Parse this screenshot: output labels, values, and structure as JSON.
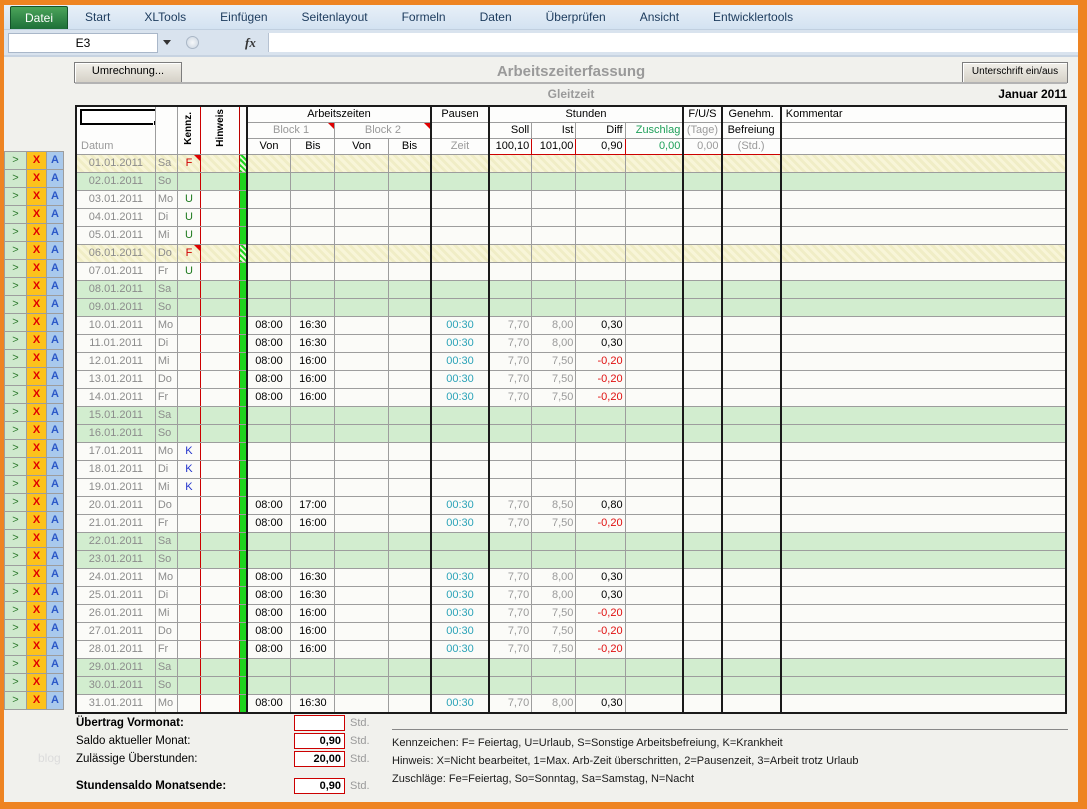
{
  "ribbon": {
    "tabs": [
      "Datei",
      "Start",
      "XLTools",
      "Einfügen",
      "Seitenlayout",
      "Formeln",
      "Daten",
      "Überprüfen",
      "Ansicht",
      "Entwicklertools"
    ],
    "active_tab": "Datei"
  },
  "formula_bar": {
    "cell_ref": "E3",
    "fx_label": "fx"
  },
  "toolbar": {
    "left_button": "Umrechnung...",
    "right_button": "Unterschrift ein/aus",
    "title": "Arbeitszeiterfassung",
    "subtitle": "Gleitzeit",
    "month": "Januar 2011"
  },
  "row_buttons": [
    ">",
    "X",
    "A"
  ],
  "table": {
    "col_headers": {
      "datum": "Datum",
      "kennz": "Kennz.",
      "hinweis": "Hinweis",
      "arbeitszeiten": "Arbeitszeiten",
      "pausen": "Pausen",
      "stunden": "Stunden",
      "fus": "F/U/S",
      "genehm": "Genehm.",
      "kommentar": "Kommentar",
      "block1": "Block 1",
      "block2": "Block 2",
      "von": "Von",
      "bis": "Bis",
      "zeit": "Zeit",
      "soll": "Soll",
      "ist": "Ist",
      "diff": "Diff",
      "zuschlag": "Zuschlag",
      "tage": "(Tage)",
      "befreiung": "Befreiung",
      "std": "(Std.)"
    },
    "totals": {
      "soll": "100,10",
      "ist": "101,00",
      "diff": "0,90",
      "zuschlag": "0,00",
      "tage": "0,00"
    },
    "rows": [
      {
        "date": "01.01.2011",
        "day": "Sa",
        "kennz": "F",
        "type": "holiday",
        "marker": true
      },
      {
        "date": "02.01.2011",
        "day": "So",
        "kennz": "",
        "type": "weekend"
      },
      {
        "date": "03.01.2011",
        "day": "Mo",
        "kennz": "U",
        "type": "normal"
      },
      {
        "date": "04.01.2011",
        "day": "Di",
        "kennz": "U",
        "type": "normal"
      },
      {
        "date": "05.01.2011",
        "day": "Mi",
        "kennz": "U",
        "type": "normal"
      },
      {
        "date": "06.01.2011",
        "day": "Do",
        "kennz": "F",
        "type": "holiday",
        "marker": true
      },
      {
        "date": "07.01.2011",
        "day": "Fr",
        "kennz": "U",
        "type": "normal"
      },
      {
        "date": "08.01.2011",
        "day": "Sa",
        "kennz": "",
        "type": "weekend"
      },
      {
        "date": "09.01.2011",
        "day": "So",
        "kennz": "",
        "type": "weekend"
      },
      {
        "date": "10.01.2011",
        "day": "Mo",
        "type": "normal",
        "von1": "08:00",
        "bis1": "16:30",
        "zeit": "00:30",
        "soll": "7,70",
        "ist": "8,00",
        "diff": "0,30"
      },
      {
        "date": "11.01.2011",
        "day": "Di",
        "type": "normal",
        "von1": "08:00",
        "bis1": "16:30",
        "zeit": "00:30",
        "soll": "7,70",
        "ist": "8,00",
        "diff": "0,30"
      },
      {
        "date": "12.01.2011",
        "day": "Mi",
        "type": "normal",
        "von1": "08:00",
        "bis1": "16:00",
        "zeit": "00:30",
        "soll": "7,70",
        "ist": "7,50",
        "diff": "-0,20"
      },
      {
        "date": "13.01.2011",
        "day": "Do",
        "type": "normal",
        "von1": "08:00",
        "bis1": "16:00",
        "zeit": "00:30",
        "soll": "7,70",
        "ist": "7,50",
        "diff": "-0,20"
      },
      {
        "date": "14.01.2011",
        "day": "Fr",
        "type": "normal",
        "von1": "08:00",
        "bis1": "16:00",
        "zeit": "00:30",
        "soll": "7,70",
        "ist": "7,50",
        "diff": "-0,20"
      },
      {
        "date": "15.01.2011",
        "day": "Sa",
        "kennz": "",
        "type": "weekend"
      },
      {
        "date": "16.01.2011",
        "day": "So",
        "kennz": "",
        "type": "weekend"
      },
      {
        "date": "17.01.2011",
        "day": "Mo",
        "kennz": "K",
        "type": "normal"
      },
      {
        "date": "18.01.2011",
        "day": "Di",
        "kennz": "K",
        "type": "normal"
      },
      {
        "date": "19.01.2011",
        "day": "Mi",
        "kennz": "K",
        "type": "normal"
      },
      {
        "date": "20.01.2011",
        "day": "Do",
        "type": "normal",
        "von1": "08:00",
        "bis1": "17:00",
        "zeit": "00:30",
        "soll": "7,70",
        "ist": "8,50",
        "diff": "0,80"
      },
      {
        "date": "21.01.2011",
        "day": "Fr",
        "type": "normal",
        "von1": "08:00",
        "bis1": "16:00",
        "zeit": "00:30",
        "soll": "7,70",
        "ist": "7,50",
        "diff": "-0,20"
      },
      {
        "date": "22.01.2011",
        "day": "Sa",
        "kennz": "",
        "type": "weekend"
      },
      {
        "date": "23.01.2011",
        "day": "So",
        "kennz": "",
        "type": "weekend"
      },
      {
        "date": "24.01.2011",
        "day": "Mo",
        "type": "normal",
        "von1": "08:00",
        "bis1": "16:30",
        "zeit": "00:30",
        "soll": "7,70",
        "ist": "8,00",
        "diff": "0,30"
      },
      {
        "date": "25.01.2011",
        "day": "Di",
        "type": "normal",
        "von1": "08:00",
        "bis1": "16:30",
        "zeit": "00:30",
        "soll": "7,70",
        "ist": "8,00",
        "diff": "0,30"
      },
      {
        "date": "26.01.2011",
        "day": "Mi",
        "type": "normal",
        "von1": "08:00",
        "bis1": "16:00",
        "zeit": "00:30",
        "soll": "7,70",
        "ist": "7,50",
        "diff": "-0,20"
      },
      {
        "date": "27.01.2011",
        "day": "Do",
        "type": "normal",
        "von1": "08:00",
        "bis1": "16:00",
        "zeit": "00:30",
        "soll": "7,70",
        "ist": "7,50",
        "diff": "-0,20"
      },
      {
        "date": "28.01.2011",
        "day": "Fr",
        "type": "normal",
        "von1": "08:00",
        "bis1": "16:00",
        "zeit": "00:30",
        "soll": "7,70",
        "ist": "7,50",
        "diff": "-0,20"
      },
      {
        "date": "29.01.2011",
        "day": "Sa",
        "kennz": "",
        "type": "weekend"
      },
      {
        "date": "30.01.2011",
        "day": "So",
        "kennz": "",
        "type": "weekend"
      },
      {
        "date": "31.01.2011",
        "day": "Mo",
        "type": "normal",
        "von1": "08:00",
        "bis1": "16:30",
        "zeit": "00:30",
        "soll": "7,70",
        "ist": "8,00",
        "diff": "0,30"
      }
    ]
  },
  "footer": {
    "rows": [
      {
        "label": "Übertrag Vormonat:",
        "value": "",
        "unit": "Std.",
        "bold": true
      },
      {
        "label": "Saldo aktueller Monat:",
        "value": "0,90",
        "unit": "Std.",
        "bold": false
      },
      {
        "label": "Zulässige Überstunden:",
        "value": "20,00",
        "unit": "Std.",
        "bold": false
      },
      {
        "label": "Stundensaldo Monatsende:",
        "value": "0,90",
        "unit": "Std.",
        "bold": true,
        "gap": true
      }
    ],
    "legend": [
      "Kennzeichen: F= Feiertag, U=Urlaub, S=Sonstige Arbeitsbefreiung, K=Krankheit",
      "Hinweis: X=Nicht bearbeitet, 1=Max. Arb-Zeit überschritten, 2=Pausenzeit, 3=Arbeit trotz Urlaub",
      "Zuschläge: Fe=Feiertag, So=Sonntag, Sa=Samstag, N=Nacht"
    ]
  },
  "watermark": "blog"
}
